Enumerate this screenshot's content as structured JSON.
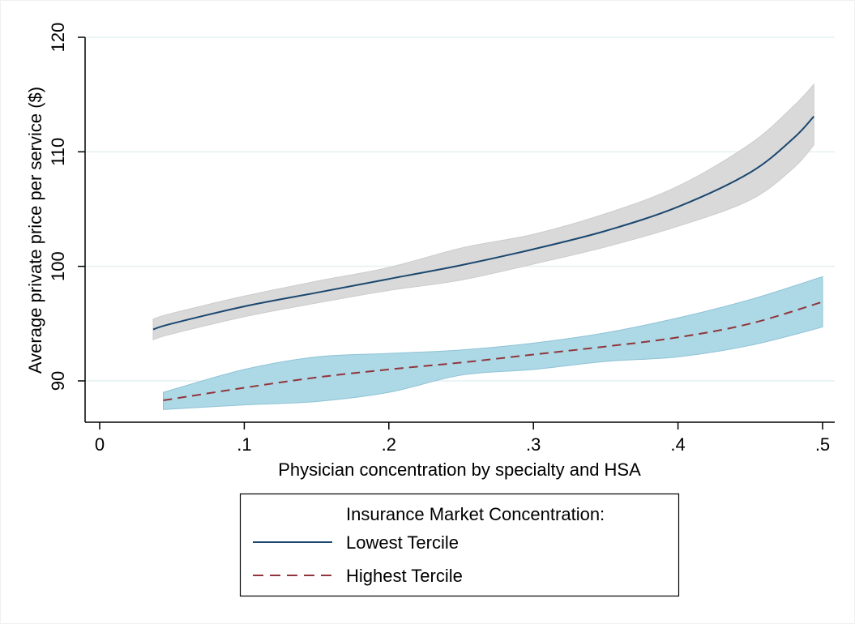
{
  "chart_data": {
    "type": "line",
    "xlabel": "Physician concentration by specialty and HSA",
    "ylabel": "Average private price per service ($)",
    "xlim": [
      0,
      0.5
    ],
    "ylim": [
      86.5,
      120
    ],
    "x_ticks": [
      0,
      0.1,
      0.2,
      0.3,
      0.4,
      0.5
    ],
    "x_tick_labels": [
      "0",
      ".1",
      ".2",
      ".3",
      ".4",
      ".5"
    ],
    "y_ticks": [
      90,
      100,
      110,
      120
    ],
    "y_tick_labels": [
      "90",
      "100",
      "110",
      "120"
    ],
    "grid": "horizontal",
    "legend": {
      "title": "Insurance Market Concentration:",
      "placement": "bottom",
      "entries": [
        "Lowest Tercile",
        "Highest Tercile"
      ]
    },
    "series": [
      {
        "name": "Lowest Tercile",
        "style": "solid",
        "color": "#1a476f",
        "band_color": "#d9d9d9",
        "x": [
          0.037,
          0.05,
          0.1,
          0.15,
          0.2,
          0.25,
          0.3,
          0.35,
          0.4,
          0.45,
          0.48,
          0.494
        ],
        "y": [
          94.5,
          95.0,
          96.5,
          97.7,
          98.9,
          100.1,
          101.5,
          103.1,
          105.2,
          108.2,
          111.2,
          113.1
        ],
        "lower": [
          93.6,
          94.1,
          95.6,
          96.8,
          97.9,
          98.8,
          100.2,
          101.7,
          103.5,
          105.8,
          108.6,
          110.6
        ],
        "upper": [
          95.4,
          95.9,
          97.4,
          98.7,
          99.9,
          101.6,
          102.8,
          104.6,
          107.0,
          110.7,
          114.0,
          115.9
        ]
      },
      {
        "name": "Highest Tercile",
        "style": "dashed",
        "color": "#90353b",
        "band_color": "#add8e6",
        "x": [
          0.044,
          0.1,
          0.15,
          0.2,
          0.25,
          0.3,
          0.35,
          0.4,
          0.45,
          0.5
        ],
        "y": [
          88.3,
          89.4,
          90.3,
          91.0,
          91.6,
          92.3,
          93.0,
          93.8,
          95.0,
          96.9
        ],
        "lower": [
          87.5,
          87.9,
          88.2,
          89.0,
          90.5,
          91.0,
          91.7,
          92.1,
          93.1,
          94.7
        ],
        "upper": [
          89.0,
          91.0,
          92.1,
          92.4,
          92.7,
          93.3,
          94.2,
          95.5,
          97.1,
          99.1
        ]
      }
    ]
  }
}
